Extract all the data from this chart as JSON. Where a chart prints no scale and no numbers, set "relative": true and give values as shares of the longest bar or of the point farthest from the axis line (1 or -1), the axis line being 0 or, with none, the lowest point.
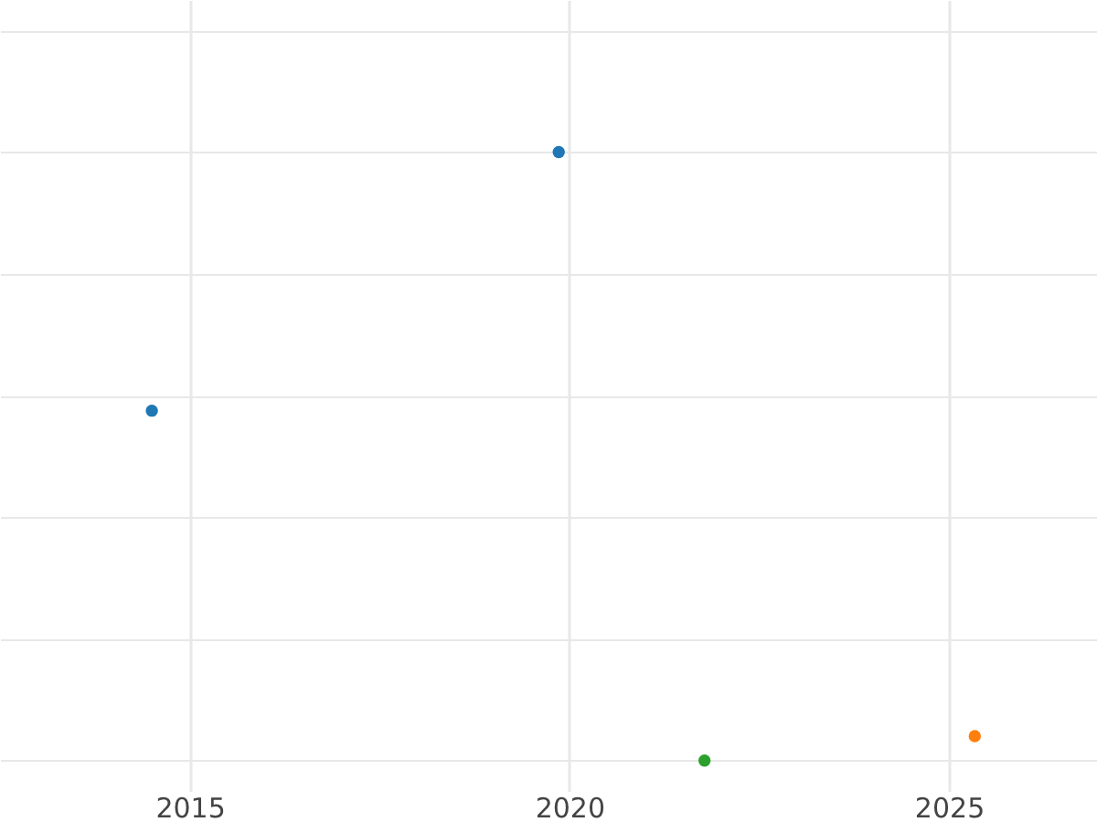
{
  "chart_data": {
    "type": "scatter",
    "relative": true,
    "xlim": [
      2012.5,
      2026.95
    ],
    "xticks": [
      2015,
      2020,
      2025
    ],
    "grid": true,
    "marker": "circle",
    "legend": false,
    "tick_labels": "x",
    "series": [
      {
        "color": "#1f77b4",
        "x": [
          2014.5,
          2019.86
        ],
        "values": [
          0.575,
          1
        ]
      },
      {
        "color": "#2ca02c",
        "x": [
          2021.78
        ],
        "values": [
          0
        ]
      },
      {
        "color": "#ff7f0e",
        "x": [
          2025.34
        ],
        "values": [
          0.04
        ]
      }
    ]
  }
}
